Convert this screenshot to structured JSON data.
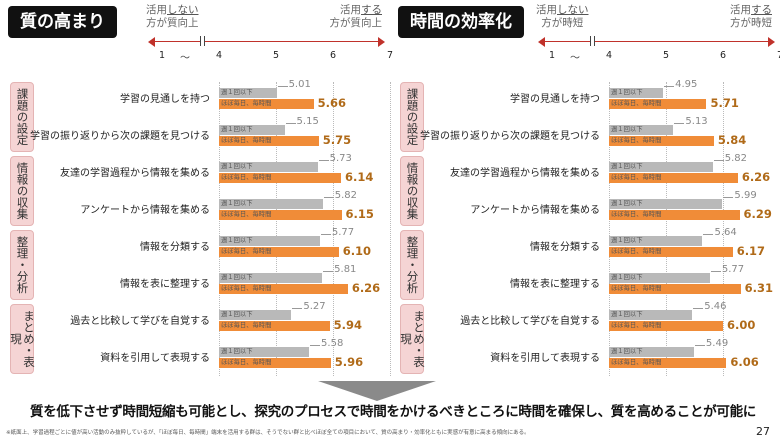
{
  "left_panel": {
    "title": "質の高まり",
    "hint_low_a": "活用",
    "hint_low_b": "しない",
    "hint_low_c": "方が質向上",
    "hint_high_a": "活用",
    "hint_high_b": "する",
    "hint_high_c": "方が質向上"
  },
  "right_panel": {
    "title": "時間の効率化",
    "hint_low_a": "活用",
    "hint_low_b": "しない",
    "hint_low_c": "方が時短",
    "hint_high_a": "活用",
    "hint_high_b": "する",
    "hint_high_c": "方が時短"
  },
  "axis": {
    "ticks": [
      "1",
      "4",
      "5",
      "6",
      "7"
    ],
    "tilde": "〜"
  },
  "series_labels": {
    "gray": "週１回以下",
    "orange": "ほぼ毎日、毎時間"
  },
  "categories": [
    "課題の設定",
    "情報の収集",
    "整理・分析",
    "まとめ・表現"
  ],
  "items": [
    "学習の見通しを持つ",
    "学習の振り返りから次の課題を見つける",
    "友達の学習過程から情報を集める",
    "アンケートから情報を集める",
    "情報を分類する",
    "情報を表に整理する",
    "過去と比較して学びを自覚する",
    "資料を引用して表現する"
  ],
  "chart_data": [
    {
      "type": "bar",
      "title": "質の高まり",
      "categories": [
        "学習の見通しを持つ",
        "学習の振り返りから次の課題を見つける",
        "友達の学習過程から情報を集める",
        "アンケートから情報を集める",
        "情報を分類する",
        "情報を表に整理する",
        "過去と比較して学びを自覚する",
        "資料を引用して表現する"
      ],
      "series": [
        {
          "name": "週１回以下",
          "values": [
            5.01,
            5.15,
            5.73,
            5.82,
            5.77,
            5.81,
            5.27,
            5.58
          ]
        },
        {
          "name": "ほぼ毎日、毎時間",
          "values": [
            5.66,
            5.75,
            6.14,
            6.15,
            6.1,
            6.26,
            5.94,
            5.96
          ]
        }
      ],
      "xlim": [
        4,
        7
      ]
    },
    {
      "type": "bar",
      "title": "時間の効率化",
      "categories": [
        "学習の見通しを持つ",
        "学習の振り返りから次の課題を見つける",
        "友達の学習過程から情報を集める",
        "アンケートから情報を集める",
        "情報を分類する",
        "情報を表に整理する",
        "過去と比較して学びを自覚する",
        "資料を引用して表現する"
      ],
      "series": [
        {
          "name": "週１回以下",
          "values": [
            4.95,
            5.13,
            5.82,
            5.99,
            5.64,
            5.77,
            5.46,
            5.49
          ]
        },
        {
          "name": "ほぼ毎日、毎時間",
          "values": [
            5.71,
            5.84,
            6.26,
            6.29,
            6.17,
            6.31,
            6.0,
            6.06
          ]
        }
      ],
      "xlim": [
        4,
        7
      ]
    }
  ],
  "summary": "質を低下させず時間短縮も可能とし、探究のプロセスで時間をかけるべきところに時間を確保し、質を高めることが可能に",
  "footnote": "※紙面上、学習過程ごとに値が高い活動のみ抜粋しているが、「ほぼ毎日、毎時間」端末を活用する群は、そうでない群と比べほぼ全ての項目において、質の高まり・効率化ともに実感が有意に高まる傾向にある。",
  "page_number": "27"
}
